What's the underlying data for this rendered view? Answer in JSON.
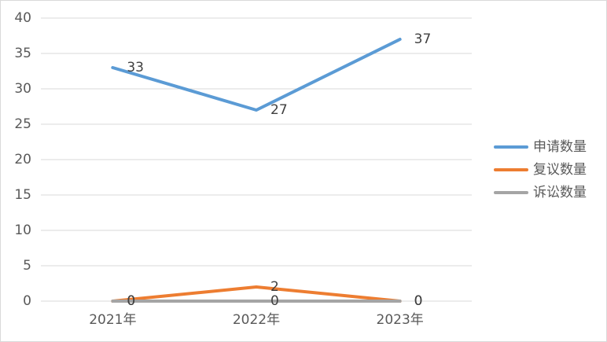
{
  "chart_data": {
    "type": "line",
    "categories": [
      "2021年",
      "2022年",
      "2023年"
    ],
    "series": [
      {
        "name": "申请数量",
        "color": "#5b9bd5",
        "values": [
          33,
          27,
          37
        ]
      },
      {
        "name": "复议数量",
        "color": "#ed7d31",
        "values": [
          0,
          2,
          0
        ]
      },
      {
        "name": "诉讼数量",
        "color": "#a5a5a5",
        "values": [
          0,
          0,
          0
        ]
      }
    ],
    "ylim": [
      0,
      40
    ],
    "yticks": [
      0,
      5,
      10,
      15,
      20,
      25,
      30,
      35,
      40
    ],
    "grid": true,
    "legend": "right",
    "data_labels": true
  }
}
